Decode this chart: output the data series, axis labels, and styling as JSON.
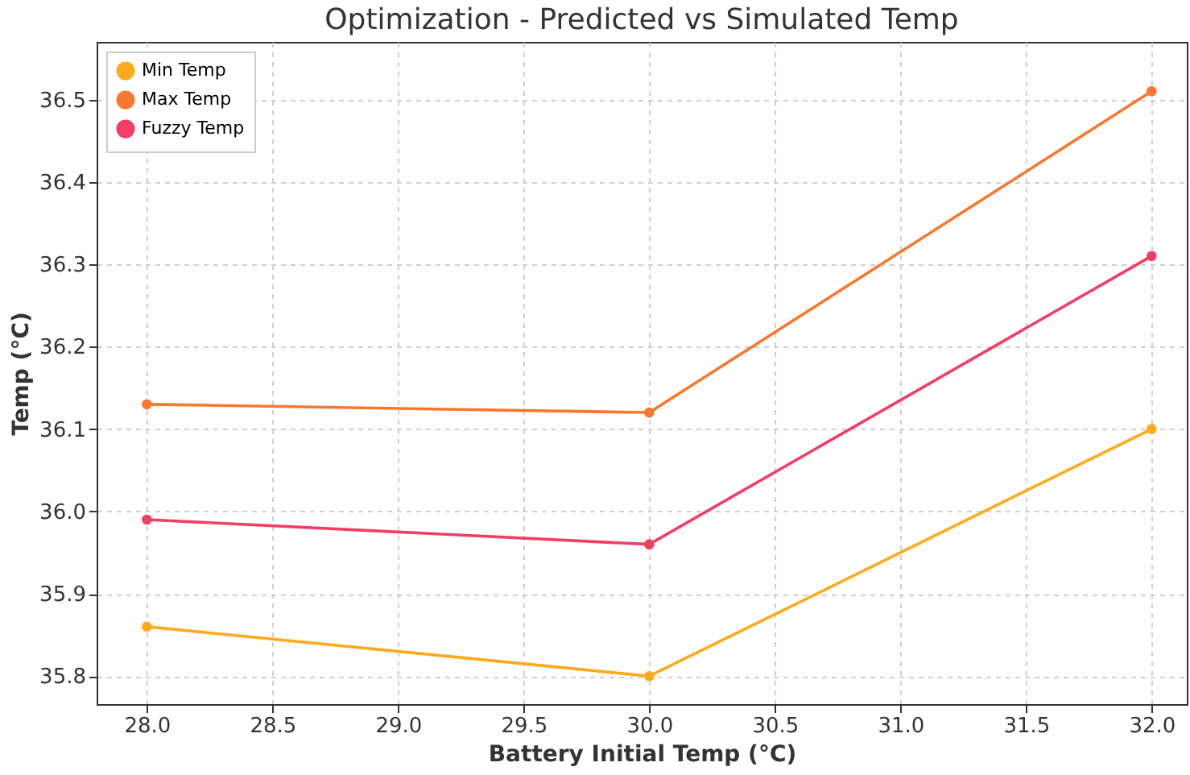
{
  "chart_data": {
    "type": "line",
    "title": "Optimization - Predicted vs Simulated Temp",
    "xlabel": "Battery Initial Temp (°C)",
    "ylabel": "Temp (°C)",
    "x": [
      28.0,
      30.0,
      32.0
    ],
    "series": [
      {
        "name": "Min Temp",
        "color": "#ffaa1d",
        "values": [
          35.86,
          35.8,
          36.1
        ]
      },
      {
        "name": "Max Temp",
        "color": "#f7782e",
        "values": [
          36.13,
          36.12,
          36.51
        ]
      },
      {
        "name": "Fuzzy Temp",
        "color": "#f03e64",
        "values": [
          35.99,
          35.96,
          36.31
        ]
      }
    ],
    "xlim": [
      27.8,
      32.14
    ],
    "ylim": [
      35.766,
      36.57
    ],
    "xticks": [
      {
        "value": 28,
        "label": "28.0"
      },
      {
        "value": 28.5,
        "label": "28.5"
      },
      {
        "value": 29,
        "label": "29.0"
      },
      {
        "value": 29.5,
        "label": "29.5"
      },
      {
        "value": 30,
        "label": "30.0"
      },
      {
        "value": 30.5,
        "label": "30.5"
      },
      {
        "value": 31,
        "label": "31.0"
      },
      {
        "value": 31.5,
        "label": "31.5"
      },
      {
        "value": 32,
        "label": "32.0"
      }
    ],
    "yticks": [
      35.8,
      35.9,
      {
        "value": 36,
        "label": "36.0"
      },
      36.1,
      36.2,
      36.3,
      36.4,
      36.5
    ],
    "grid": true,
    "legend": "top left",
    "marker": "circle",
    "line_style": "solid"
  }
}
